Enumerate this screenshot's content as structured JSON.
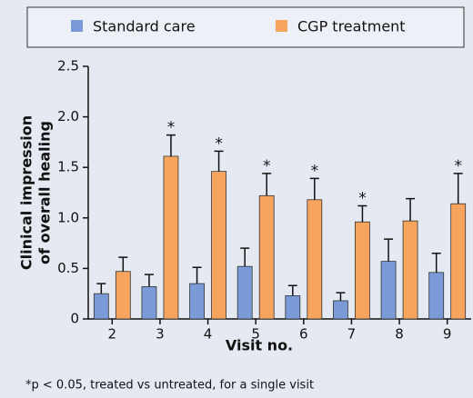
{
  "chart_data": {
    "type": "bar",
    "ylabel": [
      "Clinical impression",
      "of overall healing"
    ],
    "xlabel": "Visit no.",
    "note": "*p < 0.05, treated vs untreated, for a single visit",
    "categories": [
      "2",
      "3",
      "4",
      "5",
      "6",
      "7",
      "8",
      "9"
    ],
    "series": [
      {
        "name": "Standard care",
        "color": "#7b9bd8",
        "values": [
          0.25,
          0.32,
          0.35,
          0.52,
          0.23,
          0.18,
          0.57,
          0.46
        ],
        "errors": [
          0.1,
          0.12,
          0.16,
          0.18,
          0.1,
          0.08,
          0.22,
          0.19
        ]
      },
      {
        "name": "CGP treatment",
        "color": "#f7a45e",
        "values": [
          0.47,
          1.61,
          1.46,
          1.22,
          1.18,
          0.96,
          0.97,
          1.14
        ],
        "errors": [
          0.14,
          0.21,
          0.2,
          0.22,
          0.21,
          0.16,
          0.22,
          0.3
        ]
      }
    ],
    "significance_marker": "*",
    "significant": [
      false,
      true,
      true,
      true,
      true,
      true,
      false,
      true
    ],
    "ylim": [
      0,
      2.5
    ],
    "yticks": [
      0,
      0.5,
      {
        "value": 1.0,
        "label": "1.0"
      },
      1.5,
      {
        "value": 2.0,
        "label": "2.0"
      },
      2.5
    ],
    "legend": "top"
  }
}
